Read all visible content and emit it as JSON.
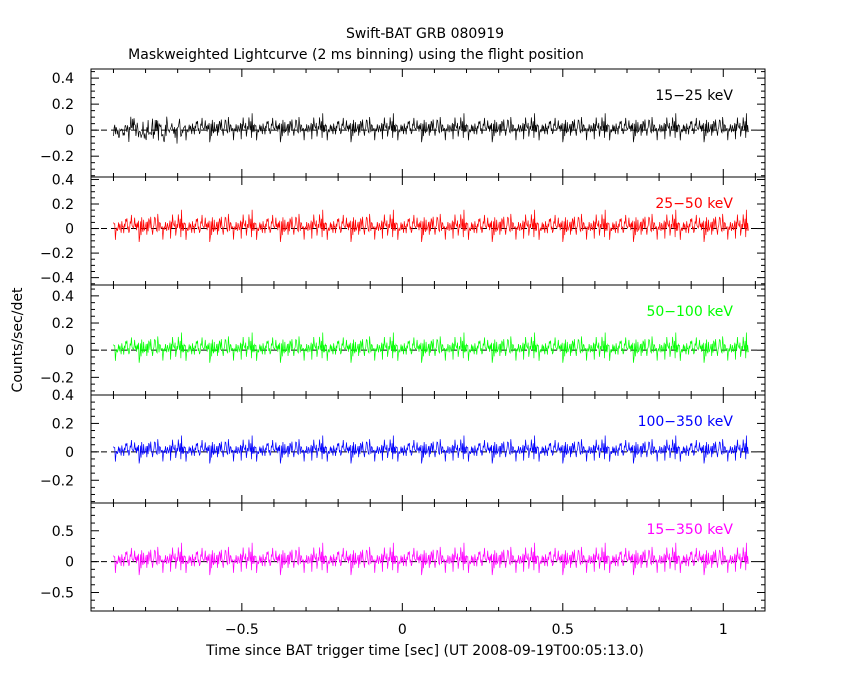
{
  "chart_data": {
    "type": "line",
    "title": "Swift-BAT GRB 080919",
    "subtitle": "Maskweighted Lightcurve (2 ms binning) using the flight position",
    "xlabel": "Time since BAT trigger time [sec] (UT 2008-09-19T00:05:13.0)",
    "ylabel": "Counts/sec/det",
    "xlim": [
      -0.97,
      1.13
    ],
    "x_ticks": [
      -0.5,
      0,
      0.5,
      1
    ],
    "x_tick_labels": [
      "−0.5",
      "0",
      "0.5",
      "1"
    ],
    "x_data_range": [
      -0.9,
      1.08
    ],
    "bin_size": 0.002,
    "panels": [
      {
        "name": "15−25 keV",
        "color": "#000000",
        "ylim": [
          -0.36,
          0.47
        ],
        "y_ticks": [
          -0.2,
          0,
          0.2,
          0.4
        ],
        "y_tick_labels": [
          "−0.2",
          "0",
          "0.2",
          "0.4"
        ],
        "noise_sigma": 0.085
      },
      {
        "name": "25−50 keV",
        "color": "#ff0000",
        "ylim": [
          -0.46,
          0.42
        ],
        "y_ticks": [
          -0.4,
          -0.2,
          0,
          0.2,
          0.4
        ],
        "y_tick_labels": [
          "−0.4",
          "−0.2",
          "0",
          "0.2",
          "0.4"
        ],
        "noise_sigma": 0.1
      },
      {
        "name": "50−100 keV",
        "color": "#00ff00",
        "ylim": [
          -0.33,
          0.48
        ],
        "y_ticks": [
          -0.2,
          0,
          0.2,
          0.4
        ],
        "y_tick_labels": [
          "−0.2",
          "0",
          "0.2",
          "0.4"
        ],
        "noise_sigma": 0.085
      },
      {
        "name": "100−350 keV",
        "color": "#0000ff",
        "ylim": [
          -0.36,
          0.4
        ],
        "y_ticks": [
          -0.2,
          0,
          0.2,
          0.4
        ],
        "y_tick_labels": [
          "−0.2",
          "0",
          "0.2",
          "0.4"
        ],
        "noise_sigma": 0.075
      },
      {
        "name": "15−350 keV",
        "color": "#ff00ff",
        "ylim": [
          -0.8,
          0.95
        ],
        "y_ticks": [
          -0.5,
          0,
          0.5
        ],
        "y_tick_labels": [
          "−0.5",
          "0",
          "0.5"
        ],
        "noise_sigma": 0.2
      }
    ],
    "grid": false,
    "legend": "none"
  }
}
